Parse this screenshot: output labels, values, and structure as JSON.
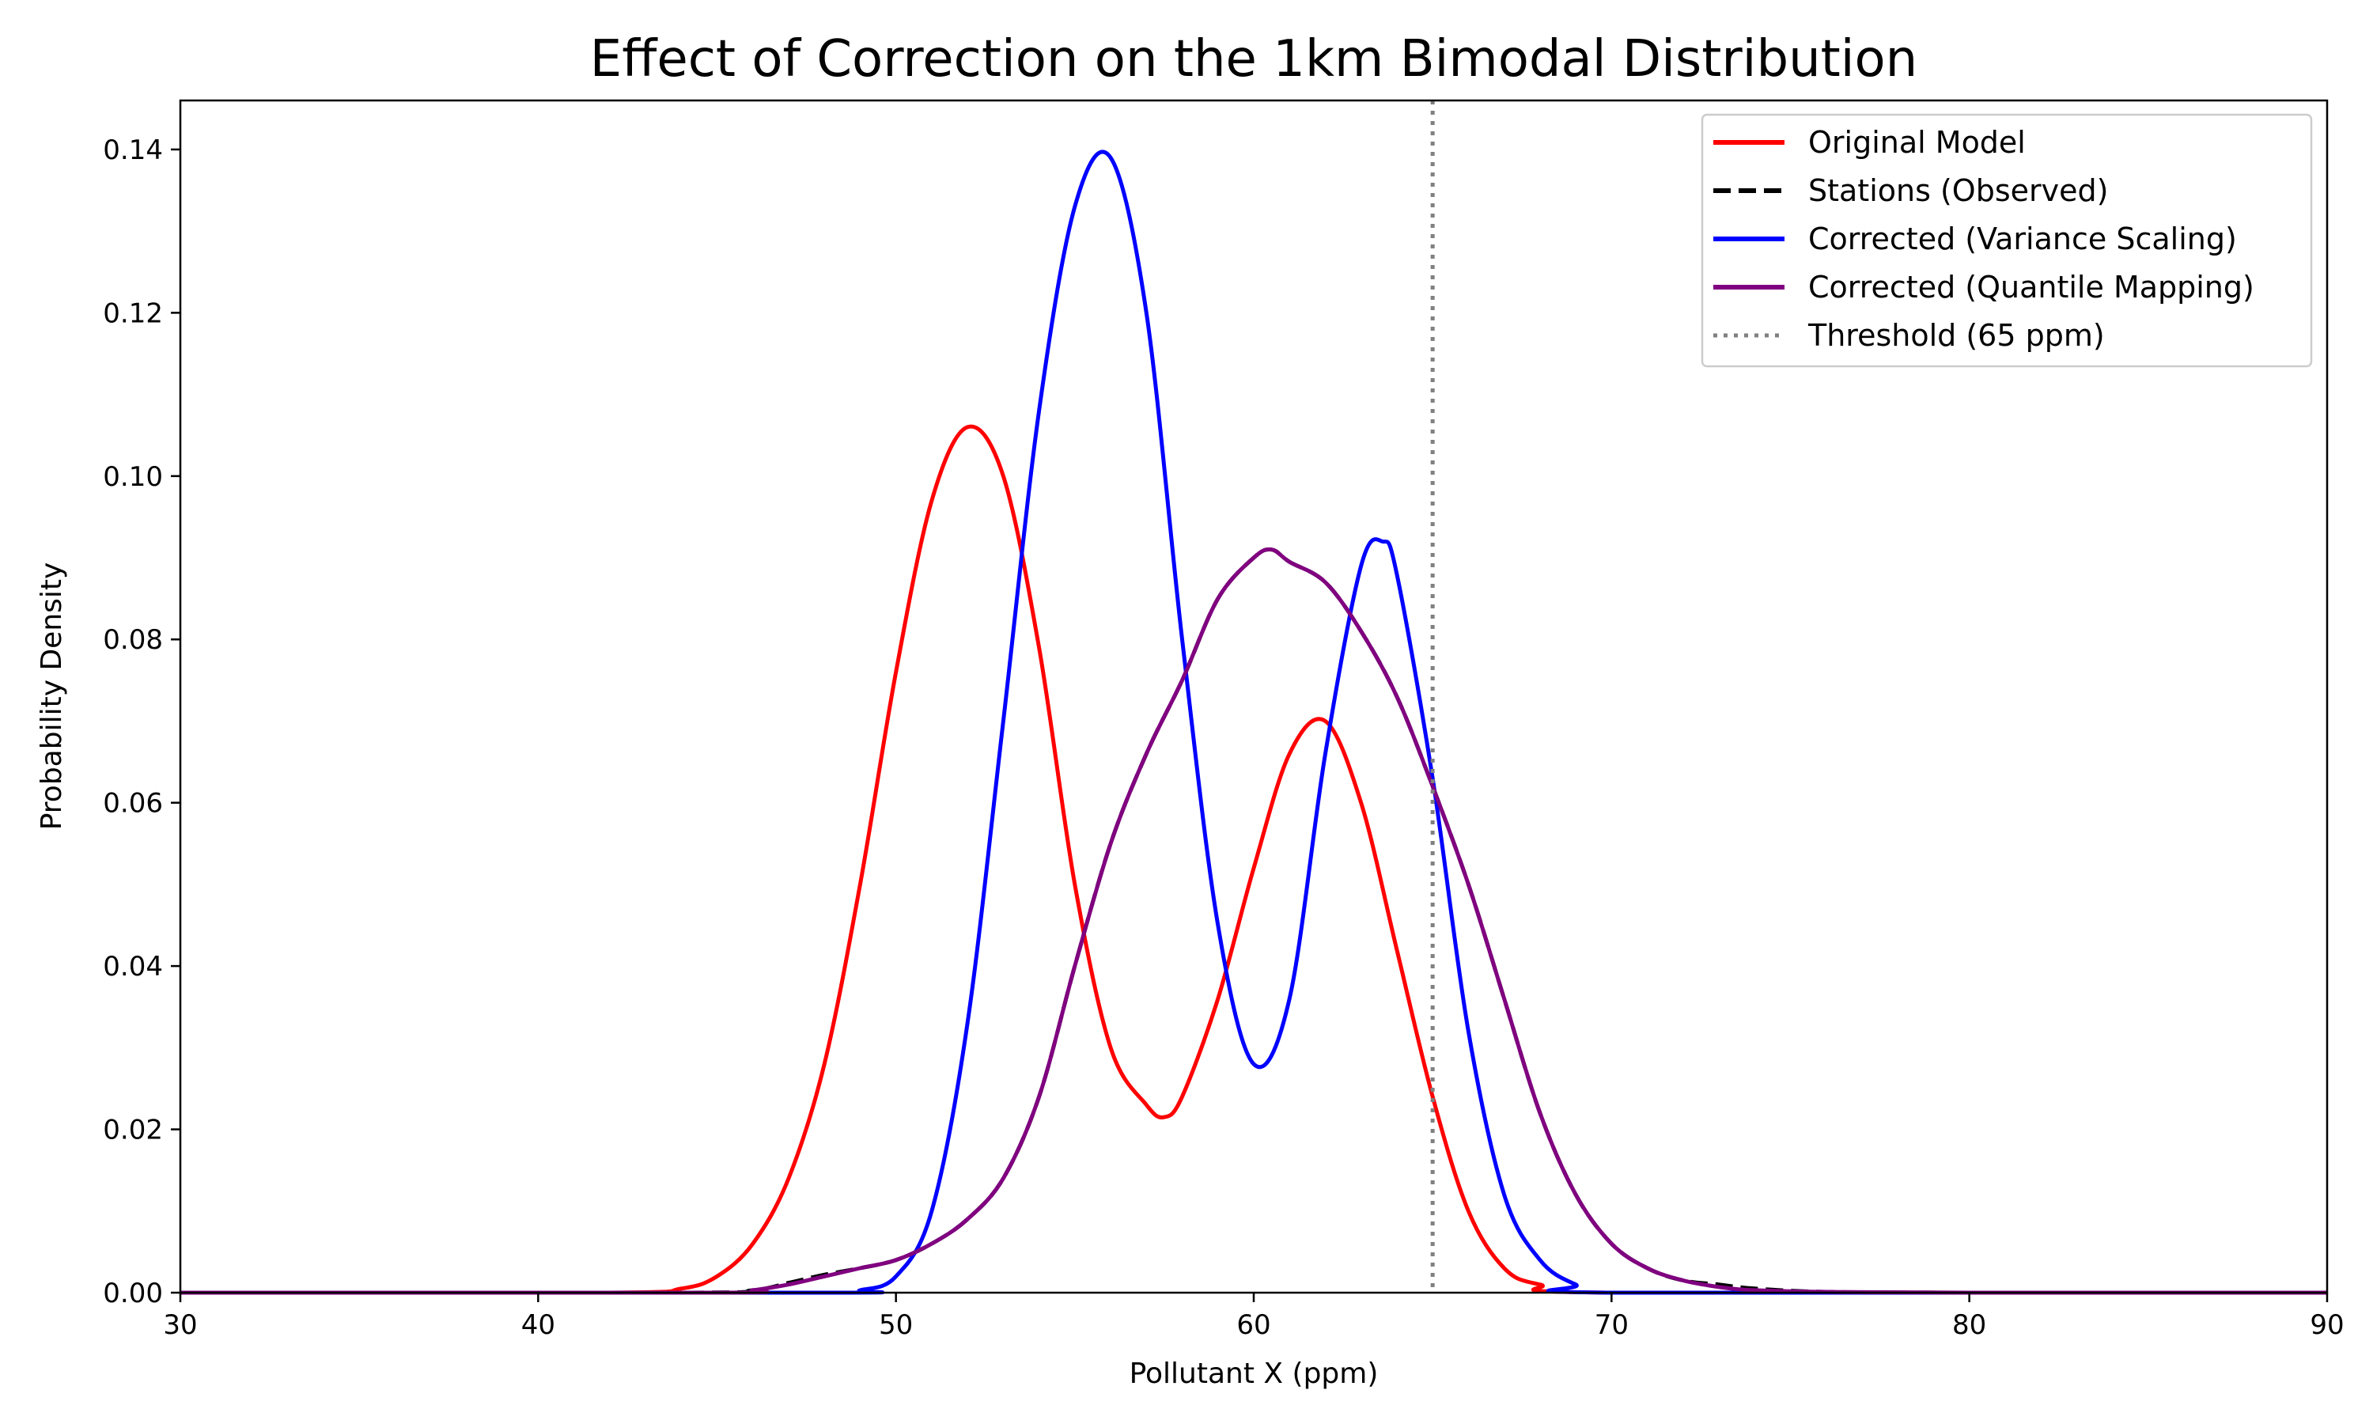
{
  "chart_data": {
    "type": "line",
    "title": "Effect of Correction on the 1km Bimodal Distribution",
    "xlabel": "Pollutant X (ppm)",
    "ylabel": "Probability Density",
    "xlim": [
      30,
      90
    ],
    "ylim": [
      0,
      0.146
    ],
    "xticks": [
      30,
      40,
      50,
      60,
      70,
      80,
      90
    ],
    "yticks": [
      0.0,
      0.02,
      0.04,
      0.06,
      0.08,
      0.1,
      0.12,
      0.14
    ],
    "xtick_labels": [
      "30",
      "40",
      "50",
      "60",
      "70",
      "80",
      "90"
    ],
    "ytick_labels": [
      "0.00",
      "0.02",
      "0.04",
      "0.06",
      "0.08",
      "0.10",
      "0.12",
      "0.14"
    ],
    "grid": false,
    "legend_position": "top-right",
    "series": [
      {
        "name": "Original Model",
        "color": "#ff0000",
        "style": "solid",
        "x": [
          30,
          42,
          44,
          45,
          46,
          47,
          48,
          49,
          50,
          51,
          52,
          53,
          54,
          55,
          56,
          57,
          57.5,
          58,
          59,
          60,
          61,
          62,
          63,
          64,
          65,
          66,
          67,
          68,
          70,
          90
        ],
        "y": [
          0,
          0,
          0.0005,
          0.002,
          0.006,
          0.014,
          0.028,
          0.05,
          0.076,
          0.097,
          0.106,
          0.1,
          0.079,
          0.05,
          0.03,
          0.023,
          0.0215,
          0.024,
          0.036,
          0.052,
          0.066,
          0.07,
          0.06,
          0.042,
          0.024,
          0.01,
          0.003,
          0.001,
          0,
          0
        ]
      },
      {
        "name": "Stations (Observed)",
        "color": "#000000",
        "style": "dashed",
        "x": [
          30,
          44,
          46,
          47,
          48,
          49,
          50,
          51,
          52,
          53,
          54,
          55,
          56,
          57,
          58,
          59,
          60,
          60.5,
          61,
          62,
          63,
          64,
          65,
          66,
          67,
          68,
          69,
          70,
          71,
          72,
          73,
          74,
          76,
          80,
          90
        ],
        "y": [
          0,
          0,
          0.0003,
          0.0012,
          0.0022,
          0.003,
          0.004,
          0.006,
          0.009,
          0.014,
          0.024,
          0.04,
          0.055,
          0.066,
          0.075,
          0.085,
          0.09,
          0.091,
          0.0895,
          0.087,
          0.081,
          0.073,
          0.062,
          0.05,
          0.036,
          0.022,
          0.012,
          0.006,
          0.003,
          0.0015,
          0.001,
          0.0005,
          0.0001,
          0,
          0
        ]
      },
      {
        "name": "Corrected (Variance Scaling)",
        "color": "#0000ff",
        "style": "solid",
        "x": [
          30,
          48,
          49,
          50,
          51,
          52,
          53,
          54,
          55,
          56,
          57,
          58,
          59,
          60,
          61,
          62,
          63,
          63.6,
          64,
          65,
          66,
          67,
          68,
          69,
          70,
          90
        ],
        "y": [
          0,
          0,
          0.0003,
          0.002,
          0.01,
          0.033,
          0.07,
          0.108,
          0.133,
          0.139,
          0.12,
          0.08,
          0.045,
          0.028,
          0.036,
          0.066,
          0.089,
          0.092,
          0.088,
          0.063,
          0.032,
          0.012,
          0.004,
          0.001,
          0,
          0
        ]
      },
      {
        "name": "Corrected (Quantile Mapping)",
        "color": "#800080",
        "style": "solid",
        "x": [
          30,
          45,
          46,
          47,
          48,
          49,
          50,
          51,
          52,
          53,
          54,
          55,
          56,
          57,
          58,
          59,
          60,
          60.5,
          61,
          62,
          63,
          64,
          65,
          66,
          67,
          68,
          69,
          70,
          71,
          72,
          73,
          74,
          76,
          80,
          90
        ],
        "y": [
          0,
          0,
          0.0003,
          0.001,
          0.002,
          0.003,
          0.004,
          0.006,
          0.009,
          0.014,
          0.024,
          0.04,
          0.055,
          0.066,
          0.075,
          0.085,
          0.09,
          0.091,
          0.0895,
          0.087,
          0.081,
          0.073,
          0.062,
          0.05,
          0.036,
          0.022,
          0.012,
          0.006,
          0.003,
          0.0015,
          0.0007,
          0.0003,
          0.0001,
          0,
          0
        ]
      }
    ],
    "threshold": {
      "name": "Threshold (65 ppm)",
      "x": 65,
      "color": "#808080",
      "style": "dotted"
    }
  }
}
